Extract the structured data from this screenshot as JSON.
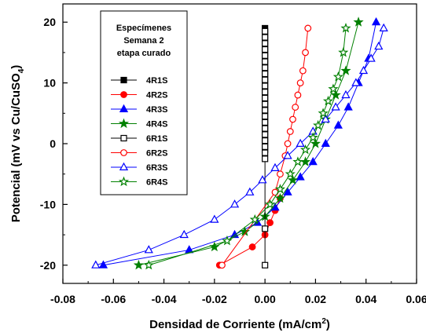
{
  "chart_data": {
    "type": "line",
    "xlabel": "Densidad de Corriente (mA/cm",
    "xlabel_sup": "2",
    "xlabel_end": ")",
    "ylabel": "Potencial (mV vs Cu/CuSO",
    "ylabel_sub": "4",
    "ylabel_end": ")",
    "xlim": [
      -0.08,
      0.06
    ],
    "ylim": [
      -23,
      23
    ],
    "xticks": [
      -0.08,
      -0.06,
      -0.04,
      -0.02,
      0.0,
      0.02,
      0.04,
      0.06
    ],
    "xtick_labels": [
      "-0.08",
      "-0.06",
      "-0.04",
      "-0.02",
      "0.00",
      "0.02",
      "0.04",
      "0.06"
    ],
    "yticks": [
      -20,
      -10,
      0,
      10,
      20
    ],
    "ytick_labels": [
      "-20",
      "-10",
      "0",
      "10",
      "20"
    ],
    "grid": false,
    "legend": {
      "placement": "top-left",
      "title": [
        "Especímenes",
        "Semana 2",
        "etapa curado"
      ]
    },
    "series": [
      {
        "name": "4R1S",
        "color": "#000000",
        "marker": "square",
        "filled": true,
        "x": [
          0.0,
          0.0,
          0.0,
          0.0,
          0.0,
          0.0,
          0.0,
          0.0,
          0.0,
          0.0,
          0.0,
          0.0,
          0.0,
          0.0,
          0.0,
          0.0,
          0.0,
          0.0,
          0.0,
          0.0,
          0.0
        ],
        "y": [
          19,
          18,
          17,
          16,
          15,
          14,
          13,
          12,
          11,
          10,
          9,
          8,
          7,
          6,
          5,
          4,
          3,
          2,
          1,
          0,
          -1
        ]
      },
      {
        "name": "4R2S",
        "color": "#ff0000",
        "marker": "circle",
        "filled": true,
        "x": [
          -0.018,
          -0.005,
          0.0,
          0.002,
          0.004,
          0.006
        ],
        "y": [
          -20,
          -17,
          -15,
          -13,
          -11,
          -9
        ]
      },
      {
        "name": "4R3S",
        "color": "#0000ff",
        "marker": "triangle",
        "filled": true,
        "x": [
          -0.064,
          -0.03,
          -0.012,
          -0.003,
          0.004,
          0.009,
          0.014,
          0.019,
          0.024,
          0.029,
          0.033,
          0.037,
          0.041,
          0.044
        ],
        "y": [
          -20,
          -17.5,
          -15,
          -13,
          -10.5,
          -8,
          -5.5,
          -3,
          0,
          3,
          6,
          10,
          14,
          20
        ]
      },
      {
        "name": "4R4S",
        "color": "#008000",
        "marker": "star",
        "filled": true,
        "x": [
          -0.05,
          -0.02,
          -0.008,
          0.0,
          0.006,
          0.011,
          0.016,
          0.02,
          0.024,
          0.028,
          0.032,
          0.037
        ],
        "y": [
          -20,
          -17,
          -14.5,
          -12,
          -9,
          -6,
          -3,
          0,
          4,
          8,
          12,
          20
        ]
      },
      {
        "name": "6R1S",
        "color": "#000000",
        "marker": "square",
        "filled": false,
        "x": [
          0.0,
          0.0,
          0.0,
          0.0,
          0.0,
          0.0,
          0.0,
          0.0,
          0.0,
          0.0,
          0.0,
          0.0,
          0.0,
          0.0,
          0.0,
          0.0,
          0.0,
          0.0,
          0.0,
          0.0,
          0.0,
          0.0,
          0.0,
          0.0
        ],
        "y": [
          18.5,
          17.5,
          16.5,
          15.5,
          14.5,
          13.5,
          12.5,
          11.5,
          10.5,
          9.5,
          8.5,
          7.5,
          6.5,
          5.5,
          4.5,
          3.5,
          2.5,
          1.5,
          0.5,
          -0.5,
          -1.5,
          -2.5,
          -14,
          -20
        ]
      },
      {
        "name": "6R2S",
        "color": "#ff0000",
        "marker": "circle",
        "filled": false,
        "x": [
          -0.017,
          0.004,
          0.006,
          0.008,
          0.009,
          0.01,
          0.011,
          0.012,
          0.013,
          0.014,
          0.015,
          0.016,
          0.017
        ],
        "y": [
          -20,
          -8,
          -5,
          -2,
          0,
          2,
          4,
          6,
          8,
          10,
          12,
          15,
          19
        ]
      },
      {
        "name": "6R3S",
        "color": "#0000ff",
        "marker": "triangle",
        "filled": false,
        "x": [
          -0.067,
          -0.046,
          -0.032,
          -0.02,
          -0.012,
          -0.006,
          -0.001,
          0.004,
          0.009,
          0.014,
          0.019,
          0.024,
          0.028,
          0.032,
          0.036,
          0.039,
          0.042,
          0.045,
          0.047
        ],
        "y": [
          -20,
          -17.5,
          -15,
          -12.5,
          -10,
          -8,
          -6,
          -4,
          -2,
          0,
          2,
          4,
          6,
          8,
          10,
          12,
          14,
          16,
          19
        ]
      },
      {
        "name": "6R4S",
        "color": "#008000",
        "marker": "star",
        "filled": false,
        "x": [
          -0.046,
          -0.015,
          -0.004,
          0.002,
          0.006,
          0.01,
          0.013,
          0.016,
          0.019,
          0.021,
          0.023,
          0.025,
          0.027,
          0.029,
          0.031,
          0.032
        ],
        "y": [
          -20,
          -16,
          -12.5,
          -10,
          -7.5,
          -5,
          -3,
          -1,
          1,
          3,
          5,
          7,
          9,
          11,
          15,
          19
        ]
      }
    ]
  }
}
